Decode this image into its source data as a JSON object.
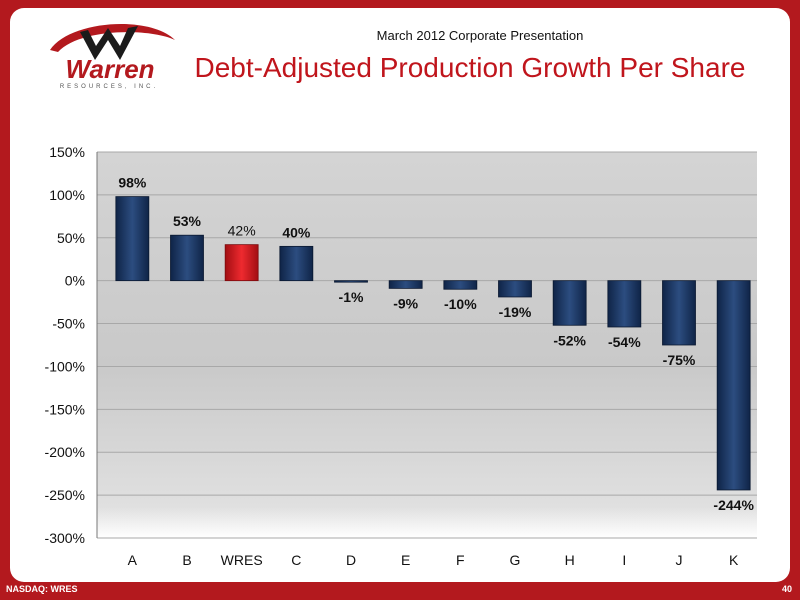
{
  "header": {
    "subtitle": "March 2012 Corporate Presentation",
    "title": "Debt-Adjusted Production Growth Per Share",
    "logo_text": "Warren",
    "logo_sub": "RESOURCES, INC."
  },
  "footer": {
    "left": "NASDAQ: WRES",
    "page": "40"
  },
  "colors": {
    "bar": "#1a355e",
    "highlight": "#d0171d",
    "accent": "#b3191e"
  },
  "chart_data": {
    "type": "bar",
    "categories": [
      "A",
      "B",
      "WRES",
      "C",
      "D",
      "E",
      "F",
      "G",
      "H",
      "I",
      "J",
      "K"
    ],
    "values": [
      98,
      53,
      42,
      40,
      -1,
      -9,
      -10,
      -19,
      -52,
      -54,
      -75,
      -244
    ],
    "data_labels": [
      "98%",
      "53%",
      "42%",
      "40%",
      "-1%",
      "-9%",
      "-10%",
      "-19%",
      "-52%",
      "-54%",
      "-75%",
      "-244%"
    ],
    "highlight_category": "WRES",
    "ylim": [
      -300,
      150
    ],
    "yticks": [
      150,
      100,
      50,
      0,
      -50,
      -100,
      -150,
      -200,
      -250,
      -300
    ],
    "ytick_labels": [
      "150%",
      "100%",
      "50%",
      "0%",
      "-50%",
      "-100%",
      "-150%",
      "-200%",
      "-250%",
      "-300%"
    ],
    "grid": true
  }
}
